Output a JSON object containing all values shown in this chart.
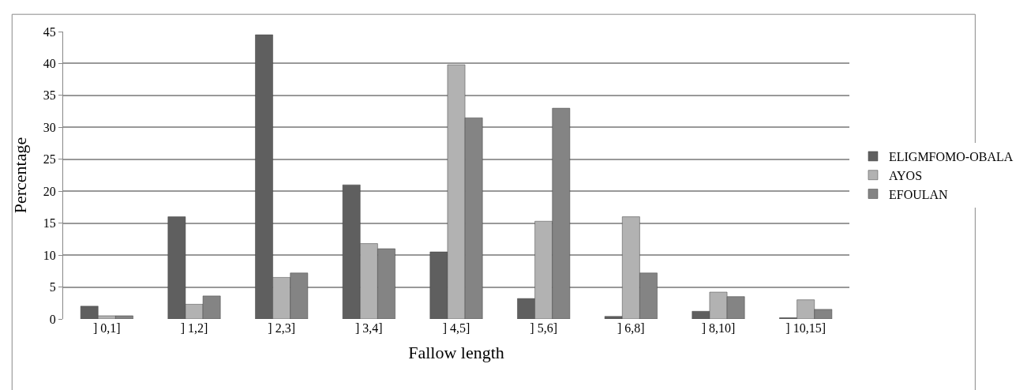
{
  "chart_data": {
    "type": "bar",
    "xlabel": "Fallow length",
    "ylabel": "Percentage",
    "categories": [
      "] 0,1]",
      "] 1,2]",
      "] 2,3]",
      "] 3,4]",
      "] 4,5]",
      "] 5,6]",
      "] 6,8]",
      "] 8,10]",
      "] 10,15]"
    ],
    "series": [
      {
        "name": "ELIGMFOMO-OBALA",
        "color": "#5f5f5f",
        "values": [
          2,
          16,
          44.5,
          21,
          10.5,
          3.2,
          0.4,
          1.2,
          0.2
        ]
      },
      {
        "name": "AYOS",
        "color": "#b2b2b2",
        "values": [
          0.5,
          2.3,
          6.5,
          11.8,
          39.8,
          15.3,
          16,
          4.2,
          3
        ]
      },
      {
        "name": "EFOULAN",
        "color": "#848484",
        "values": [
          0.5,
          3.6,
          7.2,
          11,
          31.5,
          33,
          7.2,
          3.5,
          1.5
        ]
      }
    ],
    "ylim": [
      0,
      45
    ],
    "yticks": [
      0,
      5,
      10,
      15,
      20,
      25,
      30,
      35,
      40,
      45
    ],
    "grid": "y",
    "legend": "right"
  }
}
